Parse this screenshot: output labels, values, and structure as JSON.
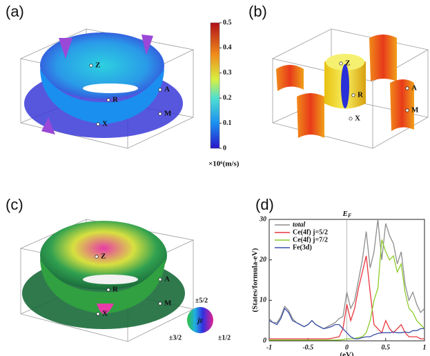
{
  "panels": {
    "a": {
      "label": "(a)",
      "points": [
        "Z",
        "R",
        "A",
        "M",
        "X"
      ]
    },
    "b": {
      "label": "(b)",
      "points": [
        "Z",
        "R",
        "A",
        "M",
        "X"
      ]
    },
    "c": {
      "label": "(c)",
      "points": [
        "Z",
        "R",
        "A",
        "M",
        "X"
      ]
    },
    "d": {
      "label": "(d)"
    }
  },
  "colorbar": {
    "range": [
      0,
      0.5
    ],
    "ticks": [
      0,
      0.1,
      0.2,
      0.3,
      0.4,
      0.5
    ],
    "unit_label": "×10⁶(m/s)"
  },
  "jz_legend": {
    "top": "±5/2",
    "left": "±3/2",
    "right": "±1/2",
    "center": "jz"
  },
  "chart_data": {
    "type": "line",
    "x_label": "(eV)",
    "y_label": "(States/formula-eV)",
    "annotation": {
      "main": "E",
      "sub": "F"
    },
    "x": [
      -1,
      -0.95,
      -0.9,
      -0.85,
      -0.8,
      -0.75,
      -0.7,
      -0.65,
      -0.6,
      -0.55,
      -0.5,
      -0.45,
      -0.4,
      -0.35,
      -0.3,
      -0.25,
      -0.2,
      -0.15,
      -0.1,
      -0.05,
      0,
      0.05,
      0.1,
      0.15,
      0.2,
      0.25,
      0.3,
      0.35,
      0.4,
      0.45,
      0.5,
      0.55,
      0.6,
      0.65,
      0.7,
      0.75,
      0.8,
      0.85,
      0.9,
      0.95,
      1
    ],
    "series": [
      {
        "name": "total",
        "color": "#8c8c8c",
        "values": [
          5.5,
          4.5,
          4.5,
          6,
          8.5,
          7.5,
          5.5,
          4.5,
          4,
          3.5,
          4,
          5,
          4,
          3.5,
          3,
          3.5,
          4,
          4.5,
          5.5,
          6,
          12,
          8,
          10,
          15,
          20,
          27,
          18,
          22,
          30,
          20,
          29,
          26,
          24,
          19,
          22,
          14,
          10,
          12,
          9,
          7,
          8
        ]
      },
      {
        "name": "Ce(4f) j=5/2",
        "color": "#e8343c",
        "values": [
          0.5,
          0.5,
          0.5,
          0.5,
          0.5,
          0.5,
          0.5,
          0.5,
          0.5,
          0.5,
          0.5,
          0.5,
          0.5,
          0.5,
          0.5,
          0.5,
          0.6,
          0.8,
          1,
          3,
          9,
          5,
          8,
          13,
          17,
          21,
          12,
          4,
          3,
          2,
          5,
          3,
          2,
          3,
          4,
          2,
          1,
          1,
          1,
          0.5,
          0.5
        ]
      },
      {
        "name": "Ce(4f) j=7/2",
        "color": "#8ccc2a",
        "values": [
          0.2,
          0.2,
          0.2,
          0.2,
          0.2,
          0.2,
          0.2,
          0.2,
          0.2,
          0.2,
          0.2,
          0.2,
          0.2,
          0.2,
          0.2,
          0.2,
          0.2,
          0.2,
          0.2,
          0.3,
          0.5,
          0.5,
          0.6,
          0.8,
          1,
          2,
          5,
          10,
          13,
          25,
          22,
          20,
          21,
          17,
          19,
          12,
          8,
          7,
          5,
          4,
          3
        ]
      },
      {
        "name": "Fe(3d)",
        "color": "#3a4fa8",
        "values": [
          5,
          4.5,
          4,
          5.5,
          8,
          7,
          5,
          4.5,
          4,
          3.5,
          4,
          5,
          4,
          3.5,
          3,
          3.2,
          3.5,
          4,
          4,
          3,
          2,
          1,
          0.5,
          0.5,
          0.8,
          1,
          1,
          1.5,
          1.8,
          2,
          2,
          2,
          2.2,
          2,
          2,
          2.2,
          2,
          2.5,
          2.5,
          3,
          3
        ]
      }
    ],
    "xlim": [
      -1,
      1
    ],
    "ylim": [
      0,
      30
    ],
    "xticks": [
      -1,
      -0.5,
      0,
      0.5,
      1
    ],
    "yticks": [
      0,
      10,
      20,
      30
    ],
    "legend": "top-left"
  }
}
